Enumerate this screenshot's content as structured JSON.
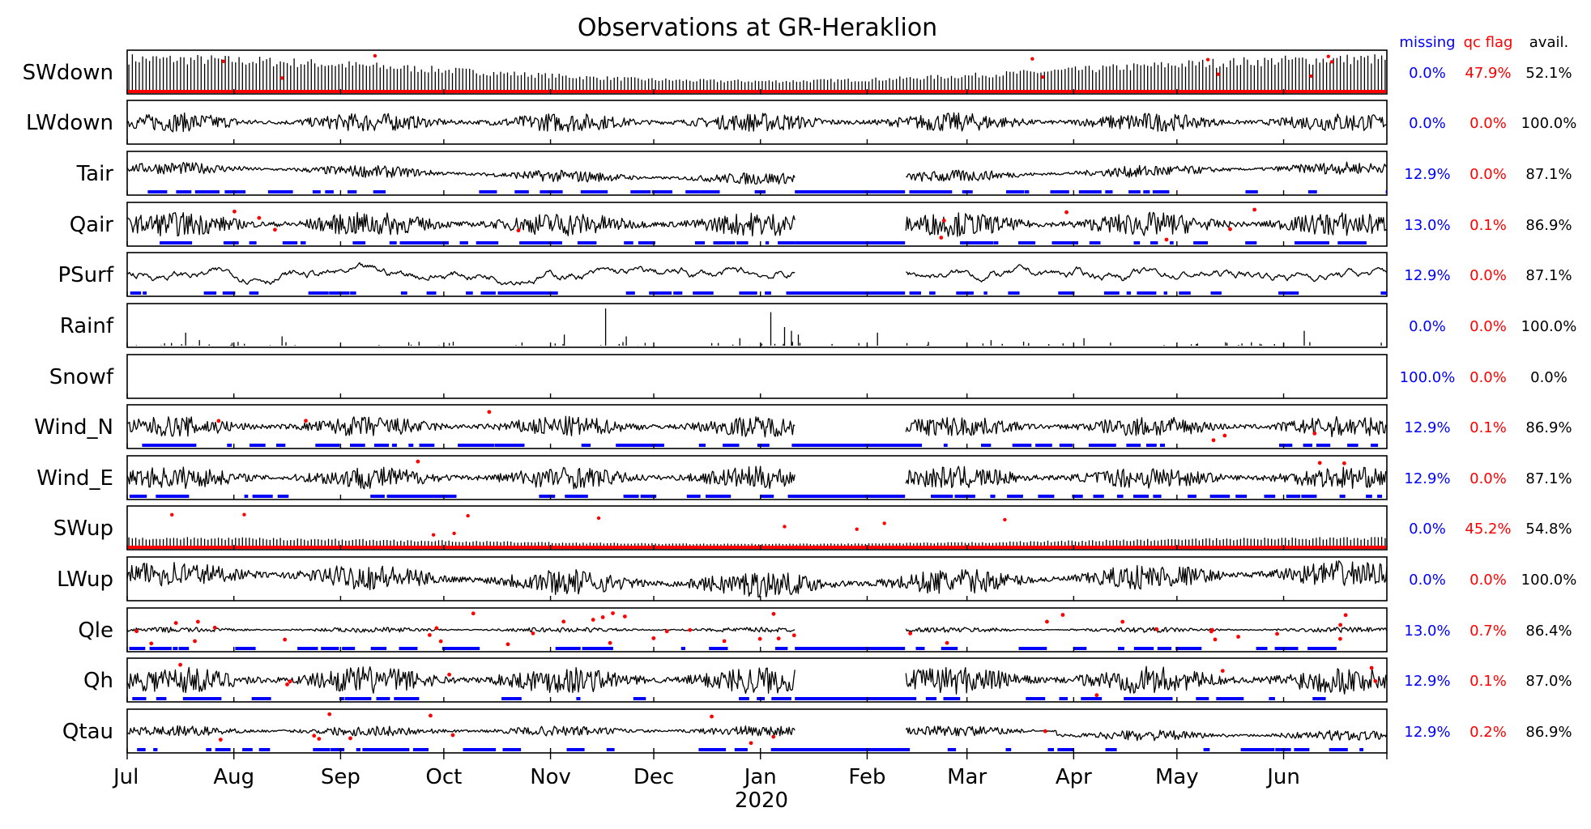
{
  "chart_data": {
    "type": "line",
    "title": "Observations at GR-Heraklion",
    "x_ticks": [
      "Jul",
      "Aug",
      "Sep",
      "Oct",
      "Nov",
      "Dec",
      "Jan",
      "Feb",
      "Mar",
      "Apr",
      "May",
      "Jun"
    ],
    "x_year_label": "2020",
    "xlim": [
      "2019-07-01",
      "2020-06-30"
    ],
    "stat_headers": {
      "missing": "missing",
      "qc_flag": "qc flag",
      "avail": "avail."
    },
    "colors": {
      "data": "#000000",
      "missing": "#0000ff",
      "qc_flag": "#ff0000",
      "avail": "#000000"
    },
    "series": [
      {
        "name": "SWdown",
        "missing": "0.0%",
        "qc_flag": "47.9%",
        "avail": "52.1%"
      },
      {
        "name": "LWdown",
        "missing": "0.0%",
        "qc_flag": "0.0%",
        "avail": "100.0%"
      },
      {
        "name": "Tair",
        "missing": "12.9%",
        "qc_flag": "0.0%",
        "avail": "87.1%"
      },
      {
        "name": "Qair",
        "missing": "13.0%",
        "qc_flag": "0.1%",
        "avail": "86.9%"
      },
      {
        "name": "PSurf",
        "missing": "12.9%",
        "qc_flag": "0.0%",
        "avail": "87.1%"
      },
      {
        "name": "Rainf",
        "missing": "0.0%",
        "qc_flag": "0.0%",
        "avail": "100.0%"
      },
      {
        "name": "Snowf",
        "missing": "100.0%",
        "qc_flag": "0.0%",
        "avail": "0.0%"
      },
      {
        "name": "Wind_N",
        "missing": "12.9%",
        "qc_flag": "0.1%",
        "avail": "86.9%"
      },
      {
        "name": "Wind_E",
        "missing": "12.9%",
        "qc_flag": "0.0%",
        "avail": "87.1%"
      },
      {
        "name": "SWup",
        "missing": "0.0%",
        "qc_flag": "45.2%",
        "avail": "54.8%"
      },
      {
        "name": "LWup",
        "missing": "0.0%",
        "qc_flag": "0.0%",
        "avail": "100.0%"
      },
      {
        "name": "Qle",
        "missing": "13.0%",
        "qc_flag": "0.7%",
        "avail": "86.4%"
      },
      {
        "name": "Qh",
        "missing": "12.9%",
        "qc_flag": "0.1%",
        "avail": "87.0%"
      },
      {
        "name": "Qtau",
        "missing": "12.9%",
        "qc_flag": "0.2%",
        "avail": "86.9%"
      }
    ]
  }
}
